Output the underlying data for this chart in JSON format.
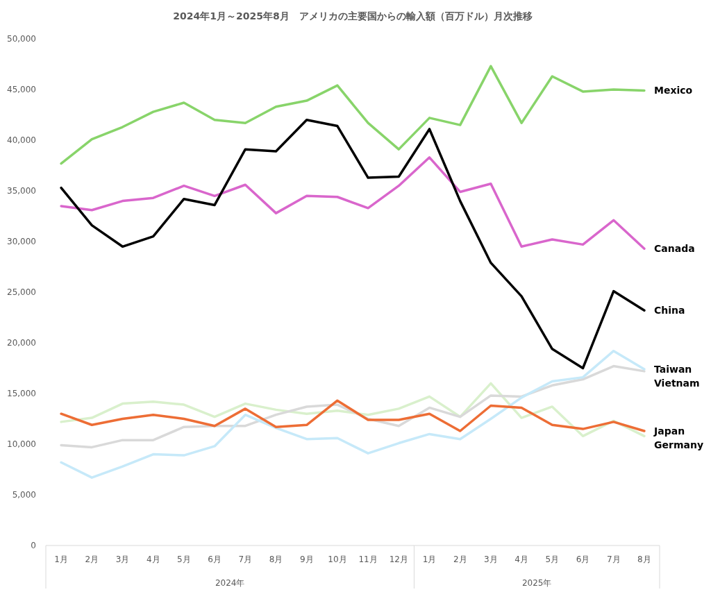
{
  "chart_data": {
    "type": "line",
    "title": "2024年1月～2025年8月　アメリカの主要国からの輸入額（百万ドル）月次推移",
    "categories": [
      "1月",
      "2月",
      "3月",
      "4月",
      "5月",
      "6月",
      "7月",
      "8月",
      "9月",
      "10月",
      "11月",
      "12月",
      "1月",
      "2月",
      "3月",
      "4月",
      "5月",
      "6月",
      "7月",
      "8月"
    ],
    "annotations": [
      "2024年",
      "2025年"
    ],
    "ylim": [
      0,
      50000
    ],
    "yticks": [
      0,
      {
        "value": 5000,
        "label": "5,000"
      },
      {
        "value": 10000,
        "label": "10,000"
      },
      {
        "value": 15000,
        "label": "15,000"
      },
      {
        "value": 20000,
        "label": "20,000"
      },
      {
        "value": 25000,
        "label": "25,000"
      },
      {
        "value": 30000,
        "label": "30,000"
      },
      {
        "value": 35000,
        "label": "35,000"
      },
      {
        "value": 40000,
        "label": "40,000"
      },
      {
        "value": 45000,
        "label": "45,000"
      },
      {
        "value": 50000,
        "label": "50,000"
      }
    ],
    "grid": false,
    "marker": "none",
    "line_style": "solid",
    "series": [
      {
        "name": "Germany",
        "color": "#d9f0cc",
        "values": [
          12200,
          12600,
          14000,
          14200,
          13900,
          12700,
          14000,
          13400,
          13000,
          13300,
          12900,
          13500,
          14700,
          12700,
          16000,
          12600,
          13700,
          10800,
          12300,
          10800
        ]
      },
      {
        "name": "Vietnam",
        "color": "#d9d9d9",
        "values": [
          9900,
          9700,
          10400,
          10400,
          11700,
          11800,
          11800,
          12900,
          13700,
          13900,
          12500,
          11800,
          13600,
          12700,
          14800,
          14700,
          15800,
          16400,
          17700,
          17200
        ]
      },
      {
        "name": "Taiwan",
        "color": "#c6e9f9",
        "values": [
          8200,
          6700,
          7800,
          9000,
          8900,
          9800,
          12900,
          11600,
          10500,
          10600,
          9100,
          10100,
          11000,
          10500,
          12500,
          14600,
          16200,
          16600,
          19200,
          17400
        ]
      },
      {
        "name": "Japan",
        "color": "#ed6d35",
        "values": [
          13000,
          11900,
          12500,
          12900,
          12500,
          11800,
          13500,
          11700,
          11900,
          14300,
          12400,
          12400,
          13000,
          11300,
          13800,
          13600,
          11900,
          11500,
          12200,
          11300
        ]
      },
      {
        "name": "Canada",
        "color": "#d966cc",
        "values": [
          33500,
          33100,
          34000,
          34300,
          35500,
          34500,
          35600,
          32800,
          34500,
          34400,
          33300,
          35500,
          38300,
          34900,
          35700,
          29500,
          30200,
          29700,
          32100,
          29300
        ]
      },
      {
        "name": "Mexico",
        "color": "#88d46a",
        "values": [
          37700,
          40100,
          41300,
          42800,
          43700,
          42000,
          41700,
          43300,
          43900,
          45400,
          41700,
          39100,
          42200,
          41500,
          47300,
          41700,
          46300,
          44800,
          45000,
          44900
        ]
      },
      {
        "name": "China",
        "color": "#000000",
        "values": [
          35300,
          31600,
          29500,
          30500,
          34200,
          33600,
          39100,
          38900,
          42000,
          41400,
          36300,
          36400,
          41100,
          34000,
          27900,
          24600,
          19400,
          17500,
          25100,
          23200
        ]
      }
    ]
  }
}
